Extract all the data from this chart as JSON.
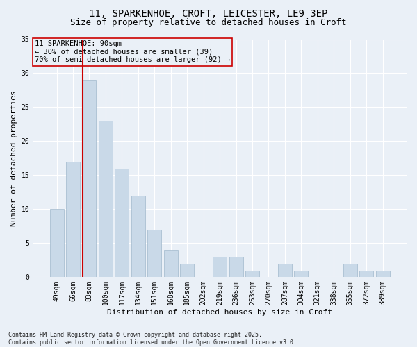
{
  "title1": "11, SPARKENHOE, CROFT, LEICESTER, LE9 3EP",
  "title2": "Size of property relative to detached houses in Croft",
  "xlabel": "Distribution of detached houses by size in Croft",
  "ylabel": "Number of detached properties",
  "categories": [
    "49sqm",
    "66sqm",
    "83sqm",
    "100sqm",
    "117sqm",
    "134sqm",
    "151sqm",
    "168sqm",
    "185sqm",
    "202sqm",
    "219sqm",
    "236sqm",
    "253sqm",
    "270sqm",
    "287sqm",
    "304sqm",
    "321sqm",
    "338sqm",
    "355sqm",
    "372sqm",
    "389sqm"
  ],
  "values": [
    10,
    17,
    29,
    23,
    16,
    12,
    7,
    4,
    2,
    0,
    3,
    3,
    1,
    0,
    2,
    1,
    0,
    0,
    2,
    1,
    1
  ],
  "bar_color": "#c9d9e8",
  "bar_edgecolor": "#a0b8cc",
  "subject_line_color": "#cc0000",
  "subject_bin_index": 2,
  "annotation_text": "11 SPARKENHOE: 90sqm\n← 30% of detached houses are smaller (39)\n70% of semi-detached houses are larger (92) →",
  "annotation_box_color": "#cc0000",
  "ylim": [
    0,
    35
  ],
  "yticks": [
    0,
    5,
    10,
    15,
    20,
    25,
    30,
    35
  ],
  "background_color": "#eaf0f7",
  "grid_color": "#ffffff",
  "footer": "Contains HM Land Registry data © Crown copyright and database right 2025.\nContains public sector information licensed under the Open Government Licence v3.0.",
  "title_fontsize": 10,
  "subtitle_fontsize": 9,
  "tick_fontsize": 7,
  "ylabel_fontsize": 8,
  "xlabel_fontsize": 8,
  "annotation_fontsize": 7.5,
  "footer_fontsize": 6
}
